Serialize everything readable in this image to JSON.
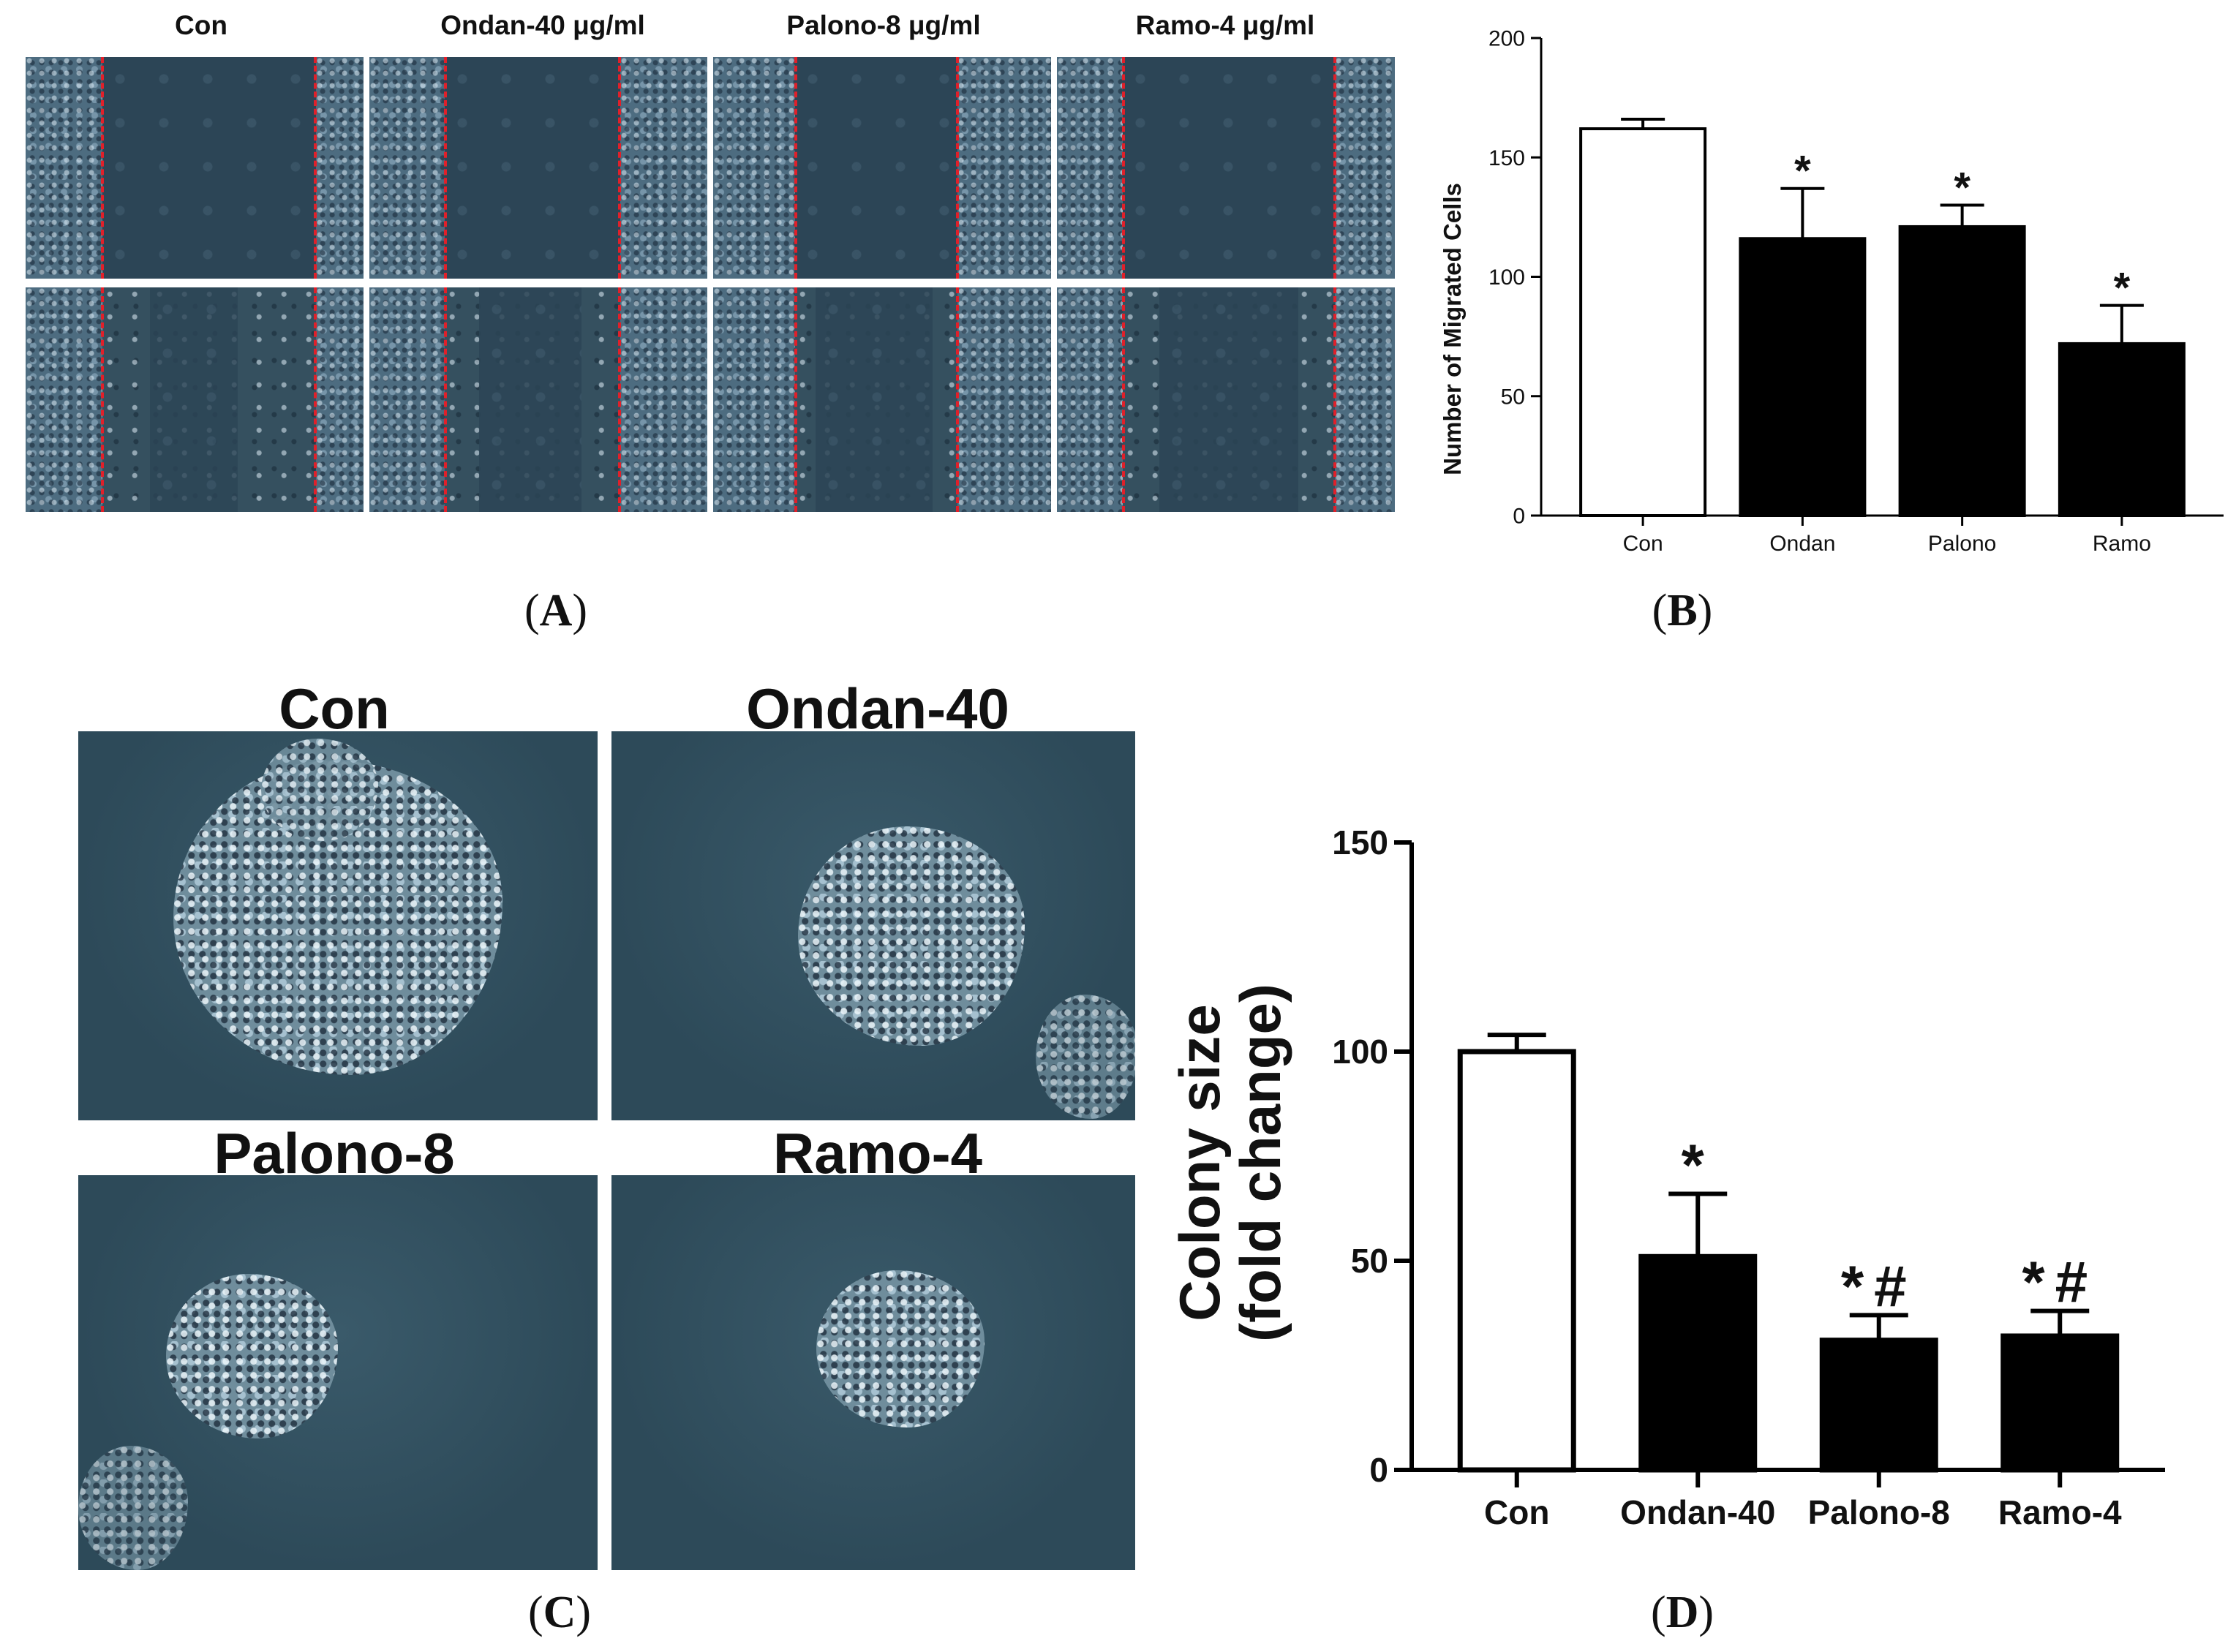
{
  "panel_letters": {
    "A": "A",
    "B": "B",
    "C": "C",
    "D": "D"
  },
  "panel_a": {
    "labels": [
      "Con",
      "Ondan-40 μg/ml",
      "Palono-8 μg/ml",
      "Ramo-4 μg/ml"
    ]
  },
  "panel_c": {
    "labels": [
      "Con",
      "Ondan-40",
      "Palono-8",
      "Ramo-4"
    ]
  },
  "chart_data": [
    {
      "panel": "B",
      "type": "bar",
      "categories": [
        "Con",
        "Ondan",
        "Palono",
        "Ramo"
      ],
      "values": [
        162,
        116,
        121,
        72
      ],
      "errors": [
        4,
        21,
        9,
        16
      ],
      "annotations": [
        "",
        "*",
        "*",
        "*"
      ],
      "fills": [
        "#ffffff",
        "#000000",
        "#000000",
        "#000000"
      ],
      "ylabel": "Number of Migrated Cells",
      "xlabel": "",
      "ylim": [
        0,
        200
      ],
      "yticks": [
        0,
        50,
        100,
        150,
        200
      ],
      "grid": false
    },
    {
      "panel": "D",
      "type": "bar",
      "categories": [
        "Con",
        "Ondan-40",
        "Palono-8",
        "Ramo-4"
      ],
      "values": [
        100,
        51,
        31,
        32
      ],
      "errors": [
        4,
        15,
        6,
        6
      ],
      "annotations": [
        "",
        "*",
        "*#",
        "*#"
      ],
      "fills": [
        "#ffffff",
        "#000000",
        "#000000",
        "#000000"
      ],
      "ylabel": [
        "Colony size",
        "(fold change)"
      ],
      "xlabel": "",
      "ylim": [
        0,
        150
      ],
      "yticks": [
        0,
        50,
        100,
        150
      ],
      "grid": false
    }
  ]
}
